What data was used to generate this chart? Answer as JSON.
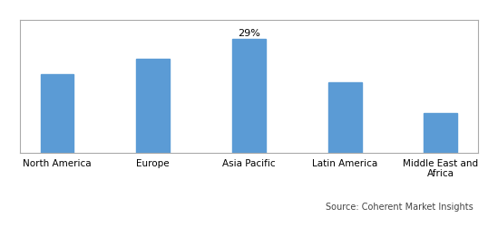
{
  "categories": [
    "North America",
    "Europe",
    "Asia Pacific",
    "Latin America",
    "Middle East and\nAfrica"
  ],
  "values": [
    20,
    24,
    29,
    18,
    10
  ],
  "bar_color": "#5B9BD5",
  "labeled_bar_index": 2,
  "label_text": "29%",
  "source_text": "Source: Coherent Market Insights",
  "background_color": "#ffffff",
  "ylim": [
    0,
    34
  ],
  "bar_width": 0.35,
  "label_fontsize": 8,
  "tick_fontsize": 7.5,
  "source_fontsize": 7,
  "border_color": "#aaaaaa"
}
